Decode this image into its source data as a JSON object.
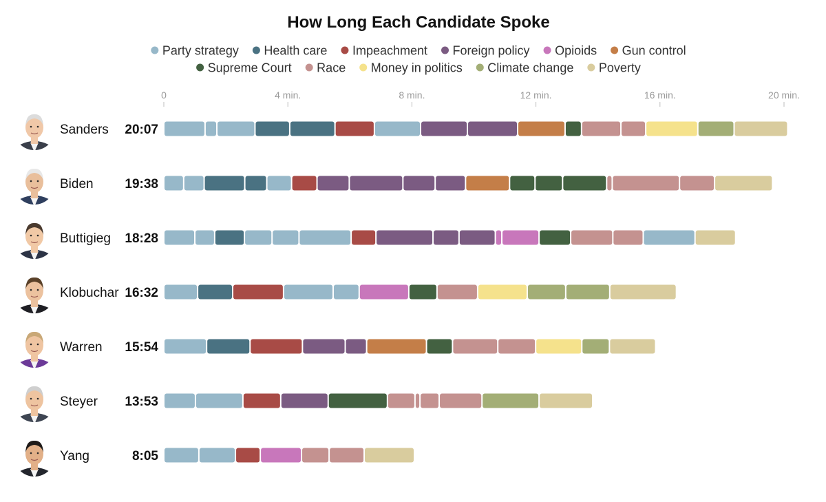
{
  "chart_data": {
    "type": "bar",
    "title": "How Long Each Candidate Spoke",
    "xlabel": "",
    "ylabel": "",
    "xlim": [
      0,
      20
    ],
    "x_unit": "minutes",
    "ticks": [
      {
        "value": 0,
        "label": "0"
      },
      {
        "value": 4,
        "label": "4 min."
      },
      {
        "value": 8,
        "label": "8 min."
      },
      {
        "value": 12,
        "label": "12 min."
      },
      {
        "value": 16,
        "label": "16 min."
      },
      {
        "value": 20,
        "label": "20 min."
      }
    ],
    "legend": [
      {
        "label": "Party strategy",
        "color": "#97b8c9"
      },
      {
        "label": "Health care",
        "color": "#4a7282"
      },
      {
        "label": "Impeachment",
        "color": "#a84b46"
      },
      {
        "label": "Foreign policy",
        "color": "#7b5b82"
      },
      {
        "label": "Opioids",
        "color": "#c877bb"
      },
      {
        "label": "Gun control",
        "color": "#c47e48"
      },
      {
        "label": "Supreme Court",
        "color": "#436141"
      },
      {
        "label": "Race",
        "color": "#c49290"
      },
      {
        "label": "Money in politics",
        "color": "#f5e28c"
      },
      {
        "label": "Climate change",
        "color": "#a3ae76"
      },
      {
        "label": "Poverty",
        "color": "#d9cc9e"
      }
    ],
    "candidates": [
      {
        "name": "Sanders",
        "time": "20:07",
        "total": 20.12,
        "segments": [
          {
            "topic": "Party strategy",
            "duration": 1.33
          },
          {
            "topic": "Party strategy",
            "duration": 0.38
          },
          {
            "topic": "Party strategy",
            "duration": 1.23
          },
          {
            "topic": "Health care",
            "duration": 1.12
          },
          {
            "topic": "Health care",
            "duration": 1.46
          },
          {
            "topic": "Impeachment",
            "duration": 1.27
          },
          {
            "topic": "Party strategy",
            "duration": 1.49
          },
          {
            "topic": "Foreign policy",
            "duration": 1.51
          },
          {
            "topic": "Foreign policy",
            "duration": 1.62
          },
          {
            "topic": "Gun control",
            "duration": 1.53
          },
          {
            "topic": "Supreme Court",
            "duration": 0.53
          },
          {
            "topic": "Race",
            "duration": 1.27
          },
          {
            "topic": "Race",
            "duration": 0.8
          },
          {
            "topic": "Money in politics",
            "duration": 1.68
          },
          {
            "topic": "Climate change",
            "duration": 1.17
          },
          {
            "topic": "Poverty",
            "duration": 1.73
          }
        ]
      },
      {
        "name": "Biden",
        "time": "19:38",
        "total": 19.63,
        "segments": [
          {
            "topic": "Party strategy",
            "duration": 0.64
          },
          {
            "topic": "Party strategy",
            "duration": 0.66
          },
          {
            "topic": "Health care",
            "duration": 1.31
          },
          {
            "topic": "Health care",
            "duration": 0.71
          },
          {
            "topic": "Party strategy",
            "duration": 0.8
          },
          {
            "topic": "Impeachment",
            "duration": 0.82
          },
          {
            "topic": "Foreign policy",
            "duration": 1.04
          },
          {
            "topic": "Foreign policy",
            "duration": 1.73
          },
          {
            "topic": "Foreign policy",
            "duration": 1.04
          },
          {
            "topic": "Foreign policy",
            "duration": 0.98
          },
          {
            "topic": "Gun control",
            "duration": 1.42
          },
          {
            "topic": "Supreme Court",
            "duration": 0.82
          },
          {
            "topic": "Supreme Court",
            "duration": 0.89
          },
          {
            "topic": "Supreme Court",
            "duration": 1.42
          },
          {
            "topic": "Race",
            "duration": 0.18
          },
          {
            "topic": "Race",
            "duration": 2.17
          },
          {
            "topic": "Race",
            "duration": 1.13
          },
          {
            "topic": "Poverty",
            "duration": 1.87
          }
        ]
      },
      {
        "name": "Buttigieg",
        "time": "18:28",
        "total": 18.47,
        "segments": [
          {
            "topic": "Party strategy",
            "duration": 1.0
          },
          {
            "topic": "Party strategy",
            "duration": 0.64
          },
          {
            "topic": "Health care",
            "duration": 0.96
          },
          {
            "topic": "Party strategy",
            "duration": 0.89
          },
          {
            "topic": "Party strategy",
            "duration": 0.87
          },
          {
            "topic": "Party strategy",
            "duration": 1.68
          },
          {
            "topic": "Impeachment",
            "duration": 0.8
          },
          {
            "topic": "Foreign policy",
            "duration": 1.84
          },
          {
            "topic": "Foreign policy",
            "duration": 0.84
          },
          {
            "topic": "Foreign policy",
            "duration": 1.17
          },
          {
            "topic": "Opioids",
            "duration": 0.21
          },
          {
            "topic": "Opioids",
            "duration": 1.2
          },
          {
            "topic": "Supreme Court",
            "duration": 1.02
          },
          {
            "topic": "Race",
            "duration": 1.36
          },
          {
            "topic": "Race",
            "duration": 0.98
          },
          {
            "topic": "Party strategy",
            "duration": 1.67
          },
          {
            "topic": "Poverty",
            "duration": 1.31
          }
        ]
      },
      {
        "name": "Klobuchar",
        "time": "16:32",
        "total": 16.53,
        "segments": [
          {
            "topic": "Party strategy",
            "duration": 1.09
          },
          {
            "topic": "Health care",
            "duration": 1.13
          },
          {
            "topic": "Impeachment",
            "duration": 1.64
          },
          {
            "topic": "Party strategy",
            "duration": 1.6
          },
          {
            "topic": "Party strategy",
            "duration": 0.84
          },
          {
            "topic": "Opioids",
            "duration": 1.6
          },
          {
            "topic": "Supreme Court",
            "duration": 0.91
          },
          {
            "topic": "Race",
            "duration": 1.31
          },
          {
            "topic": "Money in politics",
            "duration": 1.6
          },
          {
            "topic": "Climate change",
            "duration": 1.24
          },
          {
            "topic": "Climate change",
            "duration": 1.42
          },
          {
            "topic": "Poverty",
            "duration": 2.15
          }
        ]
      },
      {
        "name": "Warren",
        "time": "15:54",
        "total": 15.9,
        "segments": [
          {
            "topic": "Party strategy",
            "duration": 1.38
          },
          {
            "topic": "Health care",
            "duration": 1.4
          },
          {
            "topic": "Impeachment",
            "duration": 1.69
          },
          {
            "topic": "Foreign policy",
            "duration": 1.38
          },
          {
            "topic": "Foreign policy",
            "duration": 0.69
          },
          {
            "topic": "Gun control",
            "duration": 1.93
          },
          {
            "topic": "Supreme Court",
            "duration": 0.84
          },
          {
            "topic": "Race",
            "duration": 1.46
          },
          {
            "topic": "Race",
            "duration": 1.22
          },
          {
            "topic": "Money in politics",
            "duration": 1.49
          },
          {
            "topic": "Climate change",
            "duration": 0.89
          },
          {
            "topic": "Poverty",
            "duration": 1.49
          }
        ]
      },
      {
        "name": "Steyer",
        "time": "13:53",
        "total": 13.88,
        "segments": [
          {
            "topic": "Party strategy",
            "duration": 1.02
          },
          {
            "topic": "Party strategy",
            "duration": 1.53
          },
          {
            "topic": "Impeachment",
            "duration": 1.22
          },
          {
            "topic": "Foreign policy",
            "duration": 1.53
          },
          {
            "topic": "Supreme Court",
            "duration": 1.91
          },
          {
            "topic": "Race",
            "duration": 0.89
          },
          {
            "topic": "Race",
            "duration": 0.16
          },
          {
            "topic": "Race",
            "duration": 0.62
          },
          {
            "topic": "Race",
            "duration": 1.38
          },
          {
            "topic": "Climate change",
            "duration": 1.84
          },
          {
            "topic": "Poverty",
            "duration": 1.73
          }
        ]
      },
      {
        "name": "Yang",
        "time": "8:05",
        "total": 8.08,
        "segments": [
          {
            "topic": "Party strategy",
            "duration": 1.13
          },
          {
            "topic": "Party strategy",
            "duration": 1.18
          },
          {
            "topic": "Impeachment",
            "duration": 0.8
          },
          {
            "topic": "Opioids",
            "duration": 1.33
          },
          {
            "topic": "Race",
            "duration": 0.89
          },
          {
            "topic": "Race",
            "duration": 1.13
          },
          {
            "topic": "Poverty",
            "duration": 1.62
          }
        ]
      }
    ]
  }
}
